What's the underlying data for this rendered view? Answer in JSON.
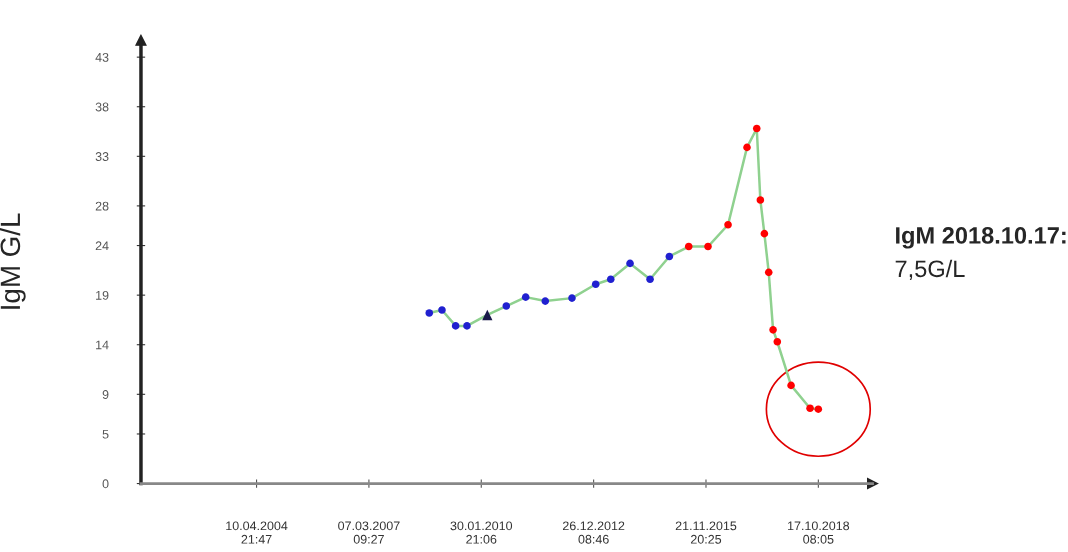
{
  "chart_data": {
    "type": "scatter",
    "ylabel": "IgM G/L",
    "xlim": [
      "2001-04-16",
      "2020-03-12"
    ],
    "ylim": [
      0,
      44.7
    ],
    "xticks": [
      {
        "value": "2004-04-10T21:47",
        "label": "10.04.2004\n21:47"
      },
      {
        "value": "2007-03-07T09:27",
        "label": "07.03.2007\n09:27"
      },
      {
        "value": "2010-01-30T21:06",
        "label": "30.01.2010\n21:06"
      },
      {
        "value": "2012-12-26T08:46",
        "label": "26.12.2012\n08:46"
      },
      {
        "value": "2015-11-21T20:25",
        "label": "21.11.2015\n20:25"
      },
      {
        "value": "2018-10-17T08:05",
        "label": "17.10.2018\n08:05"
      }
    ],
    "yticks": [
      0,
      5,
      9,
      14,
      19,
      24,
      28,
      33,
      38,
      43
    ],
    "grid": false,
    "legend": false,
    "series": [
      {
        "type": "line",
        "color": "#8fd18f",
        "marker": "none",
        "line_style": "solid",
        "x": [
          "2008-09-27",
          "2009-01-25",
          "2009-06-03",
          "2009-09-18",
          "2010-03-29",
          "2010-09-24",
          "2011-03-26",
          "2011-09-27",
          "2012-06-05",
          "2013-01-15",
          "2013-06-06",
          "2013-12-05",
          "2014-06-12",
          "2014-12-11",
          "2015-06-12",
          "2015-12-11",
          "2016-06-17",
          "2016-12-13",
          "2017-03-15",
          "2017-04-18",
          "2017-05-26",
          "2017-07-06",
          "2017-08-16",
          "2017-09-25",
          "2018-02-02",
          "2018-07-31",
          "2018-10-17"
        ],
        "values": [
          17.2,
          17.5,
          15.9,
          15.9,
          17.0,
          17.9,
          18.8,
          18.4,
          18.7,
          20.1,
          20.6,
          22.2,
          20.6,
          22.9,
          23.9,
          23.9,
          26.1,
          33.9,
          35.8,
          28.6,
          25.2,
          21.3,
          15.5,
          14.3,
          9.9,
          7.6,
          7.5
        ]
      },
      {
        "type": "scatter",
        "color": "#2020d0",
        "marker": "circle",
        "x": [
          "2008-09-27",
          "2009-01-25",
          "2009-06-03",
          "2009-09-18",
          "2010-09-24",
          "2011-03-26",
          "2011-09-27",
          "2012-06-05",
          "2013-01-15",
          "2013-06-06",
          "2013-12-05",
          "2014-06-12",
          "2014-12-11"
        ],
        "values": [
          17.2,
          17.5,
          15.9,
          15.9,
          17.9,
          18.8,
          18.4,
          18.7,
          20.1,
          20.6,
          22.2,
          20.6,
          22.9
        ]
      },
      {
        "type": "scatter",
        "color": "#1a1a4a",
        "marker": "triangle",
        "x": [
          "2010-03-29"
        ],
        "values": [
          17.0
        ]
      },
      {
        "type": "scatter",
        "color": "#ff0000",
        "marker": "circle",
        "x": [
          "2015-06-12",
          "2015-12-11",
          "2016-06-17",
          "2016-12-13",
          "2017-03-15",
          "2017-04-18",
          "2017-05-26",
          "2017-07-06",
          "2017-08-16",
          "2017-09-25",
          "2018-02-02",
          "2018-07-31",
          "2018-10-17"
        ],
        "values": [
          23.9,
          23.9,
          26.1,
          33.9,
          35.8,
          28.6,
          25.2,
          21.3,
          15.5,
          14.3,
          9.9,
          7.6,
          7.5
        ]
      }
    ],
    "annotations": [
      "IgM 2018.10.17:",
      "7,5G/L"
    ]
  }
}
